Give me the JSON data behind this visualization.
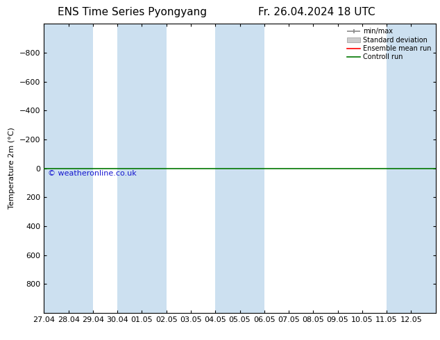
{
  "title_left": "ENS Time Series Pyongyang",
  "title_right": "Fr. 26.04.2024 18 UTC",
  "ylabel": "Temperature 2m (°C)",
  "watermark": "© weatheronline.co.uk",
  "xlim": [
    0,
    16
  ],
  "ylim": [
    -1000,
    1000
  ],
  "yticks": [
    -800,
    -600,
    -400,
    -200,
    0,
    200,
    400,
    600,
    800
  ],
  "xtick_labels": [
    "27.04",
    "28.04",
    "29.04",
    "30.04",
    "01.05",
    "02.05",
    "03.05",
    "04.05",
    "05.05",
    "06.05",
    "07.05",
    "08.05",
    "09.05",
    "10.05",
    "11.05",
    "12.05"
  ],
  "xtick_positions": [
    0,
    1,
    2,
    3,
    4,
    5,
    6,
    7,
    8,
    9,
    10,
    11,
    12,
    13,
    14,
    15
  ],
  "shaded_spans": [
    [
      0,
      2
    ],
    [
      3,
      5
    ],
    [
      7,
      9
    ],
    [
      14,
      16
    ]
  ],
  "shaded_color": "#cce0f0",
  "background_color": "#ffffff",
  "control_run_y": 0,
  "control_run_color": "#007700",
  "ensemble_mean_color": "#ff0000",
  "minmax_color": "#888888",
  "stddev_color": "#cccccc",
  "legend_items": [
    "min/max",
    "Standard deviation",
    "Ensemble mean run",
    "Controll run"
  ],
  "title_fontsize": 11,
  "axis_fontsize": 8,
  "tick_fontsize": 8,
  "watermark_color": "#0000cc"
}
